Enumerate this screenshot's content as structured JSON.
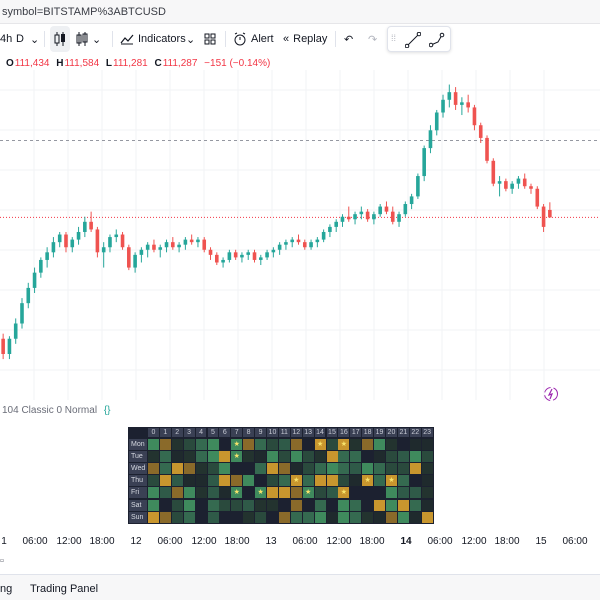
{
  "url_text": "symbol=BITSTAMP%3ABTCUSD",
  "toolbar": {
    "interval": "4h",
    "range": "D",
    "indicators_label": "Indicators",
    "alert_label": "Alert",
    "replay_label": "Replay"
  },
  "ohlc": {
    "o_key": "O",
    "o_val": "111,434",
    "h_key": "H",
    "h_val": "111,584",
    "l_key": "L",
    "l_val": "111,281",
    "c_key": "C",
    "c_val": "111,287",
    "change": "−151 (−0.14%)"
  },
  "indicator_label": "104 Classic 0 Normal",
  "x_axis": [
    "1",
    "06:00",
    "12:00",
    "18:00",
    "12",
    "06:00",
    "12:00",
    "18:00",
    "13",
    "06:00",
    "12:00",
    "18:00",
    "14",
    "06:00",
    "12:00",
    "18:00",
    "15",
    "06:00"
  ],
  "bottom_tabs": [
    "ng",
    "Trading Panel"
  ],
  "heatmap": {
    "hours": [
      "0",
      "1",
      "2",
      "3",
      "4",
      "5",
      "6",
      "7",
      "8",
      "9",
      "10",
      "11",
      "12",
      "13",
      "14",
      "15",
      "16",
      "17",
      "18",
      "19",
      "20",
      "21",
      "22",
      "23"
    ],
    "days": [
      "Mon",
      "Tue",
      "Wed",
      "Thu",
      "Fri",
      "Sat",
      "Sun"
    ]
  },
  "colors": {
    "up": "#26a69a",
    "down": "#ef5350",
    "brand": "#f7a600"
  },
  "chart_data": {
    "type": "candlestick",
    "candles": [
      [
        108900,
        109000,
        108500,
        108600
      ],
      [
        108600,
        108950,
        108500,
        108900
      ],
      [
        108900,
        109300,
        108800,
        109200
      ],
      [
        109200,
        109700,
        109100,
        109600
      ],
      [
        109600,
        110000,
        109500,
        109900
      ],
      [
        109900,
        110300,
        109800,
        110200
      ],
      [
        110200,
        110500,
        110100,
        110450
      ],
      [
        110450,
        110700,
        110300,
        110600
      ],
      [
        110600,
        110900,
        110500,
        110800
      ],
      [
        110800,
        111000,
        110700,
        110950
      ],
      [
        110950,
        111000,
        110600,
        110700
      ],
      [
        110700,
        110900,
        110600,
        110850
      ],
      [
        110850,
        111100,
        110750,
        111000
      ],
      [
        111000,
        111300,
        110900,
        111200
      ],
      [
        111200,
        111400,
        111000,
        111050
      ],
      [
        111050,
        111100,
        110500,
        110600
      ],
      [
        110600,
        110800,
        110300,
        110700
      ],
      [
        110700,
        110950,
        110600,
        110900
      ],
      [
        110900,
        111050,
        110800,
        110950
      ],
      [
        110950,
        111000,
        110650,
        110700
      ],
      [
        110700,
        110750,
        110250,
        110300
      ],
      [
        110300,
        110600,
        110200,
        110550
      ],
      [
        110550,
        110700,
        110400,
        110650
      ],
      [
        110650,
        110800,
        110500,
        110750
      ],
      [
        110750,
        110850,
        110600,
        110650
      ],
      [
        110650,
        110750,
        110500,
        110700
      ],
      [
        110700,
        110850,
        110600,
        110800
      ],
      [
        110800,
        110900,
        110650,
        110700
      ],
      [
        110700,
        110800,
        110600,
        110750
      ],
      [
        110750,
        110900,
        110650,
        110850
      ],
      [
        110850,
        110950,
        110750,
        110800
      ],
      [
        110800,
        110900,
        110700,
        110850
      ],
      [
        110850,
        110900,
        110600,
        110650
      ],
      [
        110650,
        110700,
        110450,
        110550
      ],
      [
        110550,
        110600,
        110350,
        110400
      ],
      [
        110400,
        110500,
        110300,
        110450
      ],
      [
        110450,
        110650,
        110400,
        110600
      ],
      [
        110600,
        110650,
        110450,
        110500
      ],
      [
        110500,
        110600,
        110400,
        110550
      ],
      [
        110550,
        110650,
        110450,
        110600
      ],
      [
        110600,
        110650,
        110400,
        110450
      ],
      [
        110450,
        110550,
        110350,
        110500
      ],
      [
        110500,
        110650,
        110450,
        110600
      ],
      [
        110600,
        110700,
        110500,
        110650
      ],
      [
        110650,
        110800,
        110550,
        110750
      ],
      [
        110750,
        110850,
        110650,
        110800
      ],
      [
        110800,
        110900,
        110700,
        110850
      ],
      [
        110850,
        110950,
        110750,
        110800
      ],
      [
        110800,
        110850,
        110650,
        110700
      ],
      [
        110700,
        110850,
        110650,
        110800
      ],
      [
        110800,
        110900,
        110700,
        110850
      ],
      [
        110850,
        111050,
        110800,
        111000
      ],
      [
        111000,
        111150,
        110900,
        111100
      ],
      [
        111100,
        111250,
        111000,
        111200
      ],
      [
        111200,
        111350,
        111100,
        111300
      ],
      [
        111300,
        111500,
        111200,
        111250
      ],
      [
        111250,
        111400,
        111150,
        111350
      ],
      [
        111350,
        111500,
        111250,
        111400
      ],
      [
        111400,
        111450,
        111200,
        111250
      ],
      [
        111250,
        111400,
        111150,
        111350
      ],
      [
        111350,
        111550,
        111300,
        111500
      ],
      [
        111500,
        111600,
        111350,
        111400
      ],
      [
        111400,
        111500,
        111150,
        111200
      ],
      [
        111200,
        111400,
        111100,
        111350
      ],
      [
        111350,
        111600,
        111300,
        111550
      ],
      [
        111550,
        111750,
        111450,
        111700
      ],
      [
        111700,
        112150,
        111650,
        112100
      ],
      [
        112100,
        112700,
        112000,
        112650
      ],
      [
        112650,
        113100,
        112550,
        113000
      ],
      [
        113000,
        113400,
        112900,
        113350
      ],
      [
        113350,
        113700,
        113250,
        113600
      ],
      [
        113600,
        113900,
        113450,
        113750
      ],
      [
        113750,
        113850,
        113400,
        113500
      ],
      [
        113500,
        113650,
        113300,
        113550
      ],
      [
        113550,
        113700,
        113350,
        113450
      ],
      [
        113450,
        113500,
        113000,
        113100
      ],
      [
        113100,
        113150,
        112750,
        112850
      ],
      [
        112850,
        112900,
        112350,
        112400
      ],
      [
        112400,
        112450,
        111900,
        111950
      ],
      [
        111950,
        112100,
        111700,
        112000
      ],
      [
        112000,
        112050,
        111800,
        111850
      ],
      [
        111850,
        112000,
        111750,
        111950
      ],
      [
        111950,
        112100,
        111850,
        112050
      ],
      [
        112050,
        112150,
        111850,
        111900
      ],
      [
        111900,
        111950,
        111750,
        111850
      ],
      [
        111850,
        111900,
        111450,
        111500
      ],
      [
        111500,
        111550,
        111000,
        111100
      ],
      [
        111434,
        111584,
        111281,
        111287
      ]
    ],
    "ylim": [
      108600,
      113950
    ]
  }
}
